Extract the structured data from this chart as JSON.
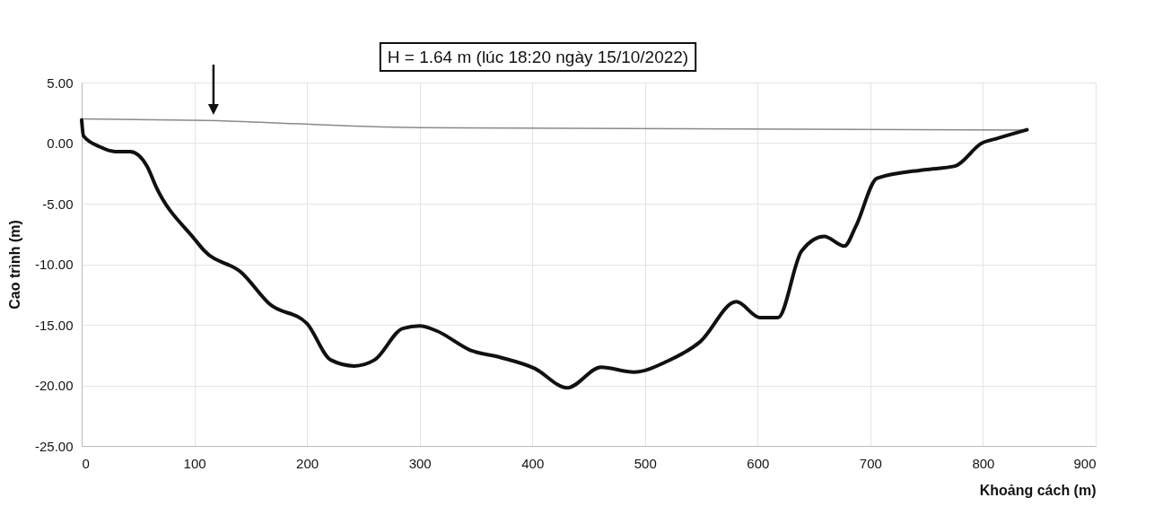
{
  "chart_data": {
    "type": "line",
    "xlabel": "Khoảng cách (m)",
    "ylabel": "Cao trình (m)",
    "annotations": [
      "H = 1.64 m (lúc 18:20 ngày 15/10/2022)"
    ],
    "xlim": [
      0,
      900
    ],
    "xticks": [
      0,
      100,
      200,
      300,
      400,
      500,
      600,
      700,
      800,
      900
    ],
    "ylim": [
      -25,
      5
    ],
    "yticks": [
      {
        "value": 5,
        "label": "5.00"
      },
      {
        "value": 0,
        "label": "0.00"
      },
      {
        "value": -5,
        "label": "-5.00"
      },
      {
        "value": -10,
        "label": "-10.00"
      },
      {
        "value": -15,
        "label": "-15.00"
      },
      {
        "value": -20,
        "label": "-20.00"
      },
      {
        "value": -25,
        "label": "-25.00"
      }
    ],
    "grid": true,
    "marker": "none",
    "series": [
      {
        "color": "#8a8a8a",
        "x": [
          0,
          111,
          298,
          839
        ],
        "values": [
          2.0,
          1.87,
          1.27,
          1.07
        ]
      },
      {
        "color": "#111111",
        "x": [
          0,
          1.6,
          16,
          30,
          43,
          58,
          66,
          100,
          109,
          142,
          167,
          200,
          221,
          242,
          260,
          285,
          300,
          315,
          345,
          372,
          402,
          431,
          461,
          490,
          520,
          549,
          581,
          602,
          618,
          639,
          659,
          677,
          687,
          706,
          748,
          775,
          799,
          813,
          839
        ],
        "values": [
          1.9,
          0.6,
          -0.3,
          -0.7,
          -0.7,
          -1.9,
          -3.6,
          -7.9,
          -8.9,
          -10.7,
          -13.3,
          -14.9,
          -17.9,
          -18.4,
          -17.9,
          -15.3,
          -15.1,
          -15.5,
          -17.1,
          -17.7,
          -18.6,
          -20.2,
          -18.5,
          -18.9,
          -18.0,
          -16.4,
          -13.1,
          -14.4,
          -14.4,
          -8.9,
          -7.7,
          -8.5,
          -6.9,
          -2.9,
          -2.2,
          -1.9,
          0.0,
          0.4,
          1.1
        ]
      }
    ]
  }
}
